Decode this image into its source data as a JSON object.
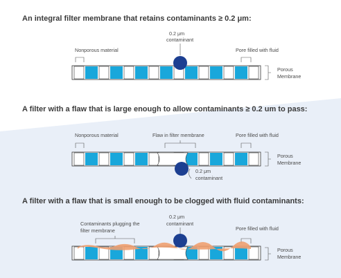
{
  "panels": [
    {
      "heading": "An integral filter membrane that retains contaminants ≥ 0.2 μm:",
      "labels": {
        "nonporous": "Nonporous material",
        "contaminant": [
          "0.2 μm",
          "contaminant"
        ],
        "pore": "Pore filled with fluid",
        "membrane": [
          "Porous",
          "Membrane"
        ]
      }
    },
    {
      "heading": "A filter with a flaw that is large enough to allow contaminants ≥ 0.2 um to pass:",
      "labels": {
        "nonporous": "Nonporous material",
        "flaw": "Flaw in filter membrane",
        "pore": "Pore filled with fluid",
        "membrane": [
          "Porous",
          "Membrane"
        ],
        "contaminant": [
          "0.2 μm",
          "contaminant"
        ]
      }
    },
    {
      "heading": "A filter with a flaw that is small enough to be clogged with fluid contaminants:",
      "labels": {
        "plugging": [
          "Contaminants plugging the",
          "filter membrane"
        ],
        "contaminant": [
          "0.2 μm",
          "contaminant"
        ],
        "pore": "Pore filled with fluid",
        "membrane": [
          "Porous",
          "Membrane"
        ]
      }
    }
  ],
  "colors": {
    "pore_fill": "#19a7db",
    "contaminant": "#1c3f91",
    "plug": "#f0a070",
    "background_band": "#e9eff8"
  }
}
